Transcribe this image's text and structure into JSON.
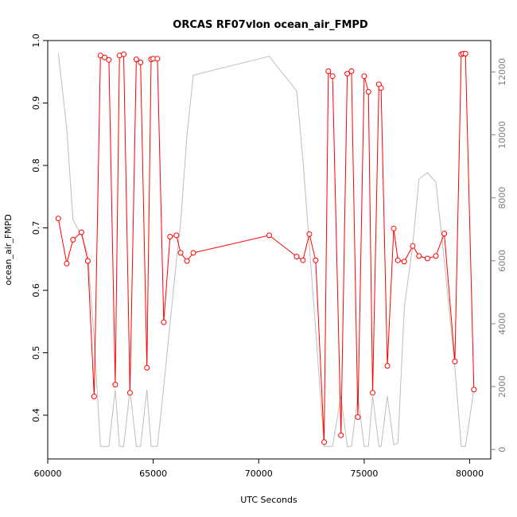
{
  "chart_data": {
    "type": "line",
    "title": "ORCAS RF07vlon ocean_air_FMPD",
    "xlabel": "UTC Seconds",
    "ylabel": "ocean_air_FMPD",
    "xlim": [
      60000,
      81000
    ],
    "ylim": [
      0.33,
      1.0
    ],
    "y2lim": [
      -300,
      13000
    ],
    "x_ticks": [
      60000,
      65000,
      70000,
      75000,
      80000
    ],
    "y_ticks": [
      0.4,
      0.5,
      0.6,
      0.7,
      0.8,
      0.9,
      1.0
    ],
    "y2_ticks": [
      0,
      2000,
      4000,
      6000,
      8000,
      10000,
      12000
    ],
    "colors": {
      "primary": "#ff0000",
      "secondary": "#bebebe",
      "axis": "#000000",
      "right_axis": "#7f7f7f"
    },
    "series": [
      {
        "color": "#ff0000",
        "markers": "open-circle",
        "x": [
          60500,
          60900,
          61200,
          61600,
          61900,
          62200,
          62500,
          62700,
          62900,
          63200,
          63400,
          63600,
          63900,
          64200,
          64400,
          64700,
          64900,
          65000,
          65200,
          65500,
          65800,
          66100,
          66300,
          66600,
          66900,
          70500,
          71800,
          72100,
          72400,
          72700,
          73100,
          73300,
          73500,
          73900,
          74200,
          74400,
          74700,
          75000,
          75200,
          75400,
          75700,
          75800,
          76100,
          76400,
          76600,
          76900,
          77300,
          77600,
          78000,
          78400,
          78800,
          79300,
          79600,
          79700,
          79800,
          80200
        ],
        "y": [
          0.715,
          0.643,
          0.681,
          0.693,
          0.647,
          0.43,
          0.976,
          0.973,
          0.969,
          0.449,
          0.976,
          0.978,
          0.436,
          0.97,
          0.965,
          0.476,
          0.97,
          0.971,
          0.971,
          0.549,
          0.686,
          0.688,
          0.66,
          0.647,
          0.66,
          0.688,
          0.654,
          0.648,
          0.69,
          0.648,
          0.357,
          0.951,
          0.943,
          0.368,
          0.947,
          0.951,
          0.397,
          0.943,
          0.918,
          0.436,
          0.93,
          0.924,
          0.479,
          0.699,
          0.648,
          0.646,
          0.671,
          0.655,
          0.651,
          0.655,
          0.691,
          0.486,
          0.978,
          0.979,
          0.979,
          0.441
        ]
      },
      {
        "color": "#bebebe",
        "axis": "right",
        "x": [
          60500,
          60900,
          61200,
          61600,
          61900,
          62200,
          62500,
          62700,
          62900,
          63200,
          63400,
          63600,
          63900,
          64200,
          64400,
          64700,
          64900,
          65000,
          65200,
          65500,
          65800,
          66100,
          66300,
          66600,
          66900,
          70500,
          71800,
          72100,
          72400,
          72700,
          73100,
          73300,
          73500,
          73900,
          74200,
          74400,
          74700,
          75000,
          75200,
          75400,
          75700,
          75800,
          76100,
          76400,
          76600,
          76900,
          77300,
          77600,
          78000,
          78400,
          78800,
          79300,
          79600,
          79700,
          79800,
          80200
        ],
        "y": [
          12600,
          10200,
          7300,
          6800,
          6200,
          3500,
          100,
          100,
          100,
          1900,
          100,
          100,
          1900,
          100,
          100,
          1900,
          100,
          100,
          100,
          2000,
          4000,
          6000,
          7200,
          10000,
          11900,
          12500,
          11400,
          9200,
          6500,
          3800,
          100,
          100,
          100,
          1700,
          100,
          100,
          1700,
          100,
          100,
          1700,
          100,
          100,
          1700,
          150,
          200,
          4500,
          6500,
          8600,
          8800,
          8500,
          6000,
          2600,
          100,
          100,
          100,
          1900
        ]
      }
    ]
  }
}
